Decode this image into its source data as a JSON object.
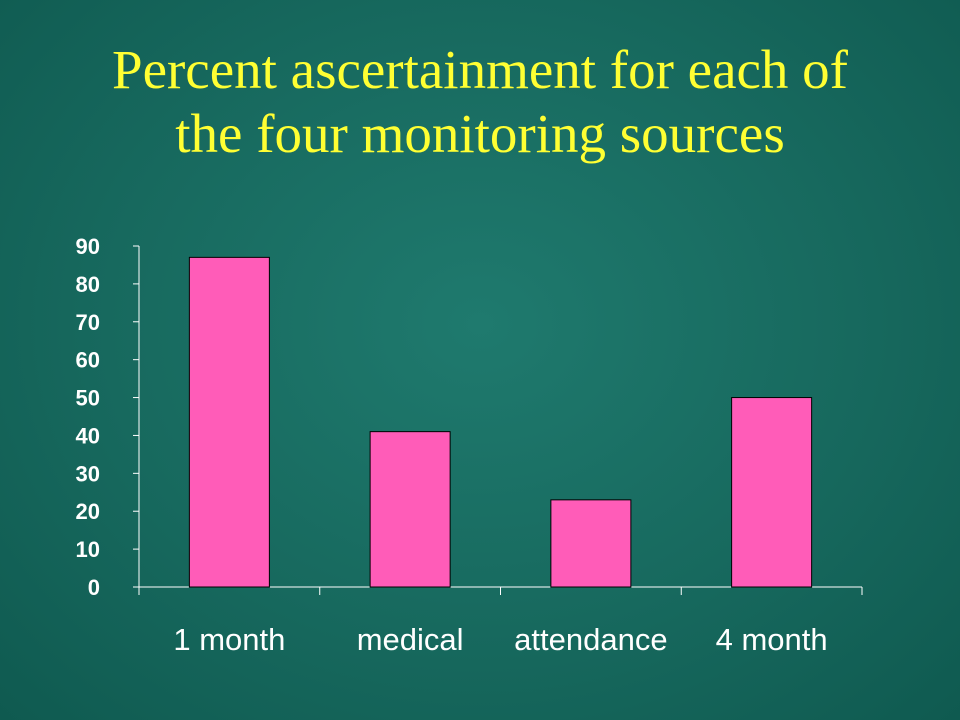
{
  "slide": {
    "title_line1": "Percent ascertainment for each of",
    "title_line2": "the four monitoring sources"
  },
  "colors": {
    "background": "#17695e",
    "title": "#ffff33",
    "bar_fill": "#ff5cb8",
    "axis": "#ffffff",
    "text": "#ffffff"
  },
  "chart_data": {
    "type": "bar",
    "title": "Percent ascertainment for each of the four monitoring sources",
    "categories": [
      "1 month",
      "medical",
      "attendance",
      "4 month"
    ],
    "values": [
      87,
      41,
      23,
      50
    ],
    "xlabel": "",
    "ylabel": "",
    "ylim": [
      0,
      90
    ],
    "yticks": [
      0,
      10,
      20,
      30,
      40,
      50,
      60,
      70,
      80,
      90
    ],
    "grid": false,
    "legend": "none"
  }
}
